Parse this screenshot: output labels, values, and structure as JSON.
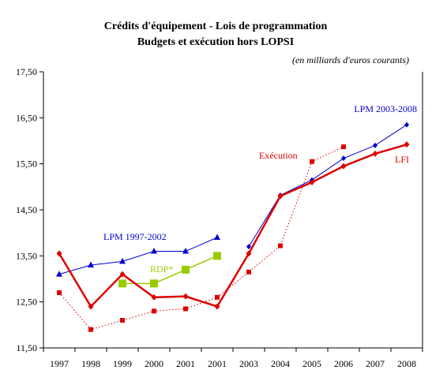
{
  "chart_data": {
    "type": "line",
    "title": "Crédits d'équipement - Lois de programmation",
    "subtitle": "Budgets et exécution hors LOPSI",
    "unit_note": "(en milliards d'euros courants)",
    "categories": [
      "1997",
      "1998",
      "1999",
      "2000",
      "2001",
      "2001",
      "2003",
      "2004",
      "2005",
      "2006",
      "2007",
      "2008"
    ],
    "yticks": [
      "17,50",
      "16,50",
      "15,50",
      "14,50",
      "13,50",
      "12,50",
      "11,50"
    ],
    "ylim": [
      11.5,
      17.5
    ],
    "grid": false,
    "series": [
      {
        "name": "LPM 1997-2002",
        "color": "#0000cc",
        "marker": "triangle",
        "line": "solid-thin",
        "segments": [
          [
            [
              0,
              13.1
            ],
            [
              1,
              13.3
            ],
            [
              2,
              13.38
            ],
            [
              3,
              13.6
            ],
            [
              4,
              13.6
            ],
            [
              5,
              13.9
            ]
          ]
        ]
      },
      {
        "name": "LPM 2003-2008",
        "color": "#0000cc",
        "marker": "diamond-small",
        "line": "solid-thin",
        "segments": [
          [
            [
              6,
              13.7
            ],
            [
              7,
              14.82
            ],
            [
              8,
              15.15
            ],
            [
              9,
              15.62
            ],
            [
              10,
              15.9
            ],
            [
              11,
              16.35
            ]
          ]
        ]
      },
      {
        "name": "LFI",
        "color": "#dd0000",
        "marker": "diamond",
        "line": "solid-thick",
        "segments": [
          [
            [
              0,
              13.55
            ],
            [
              1,
              12.4
            ],
            [
              2,
              13.1
            ],
            [
              3,
              12.6
            ],
            [
              4,
              12.62
            ],
            [
              5,
              12.4
            ],
            [
              6,
              13.55
            ],
            [
              7,
              14.8
            ],
            [
              8,
              15.1
            ],
            [
              9,
              15.45
            ],
            [
              10,
              15.72
            ],
            [
              11,
              15.92
            ]
          ]
        ]
      },
      {
        "name": "Exécution",
        "color": "#dd0000",
        "marker": "square",
        "line": "dotted",
        "segments": [
          [
            [
              0,
              12.7
            ],
            [
              1,
              11.9
            ],
            [
              2,
              12.1
            ],
            [
              3,
              12.3
            ],
            [
              4,
              12.35
            ],
            [
              5,
              12.6
            ],
            [
              6,
              13.15
            ],
            [
              7,
              13.72
            ],
            [
              8,
              15.55
            ],
            [
              9,
              15.87
            ]
          ]
        ]
      },
      {
        "name": "RDP*",
        "color": "#99cc00",
        "marker": "square-large",
        "line": "solid-thin",
        "segments": [
          [
            [
              2,
              12.9
            ],
            [
              3,
              12.9
            ],
            [
              4,
              13.2
            ],
            [
              5,
              13.5
            ]
          ]
        ]
      }
    ],
    "annotations": [
      {
        "text": "LPM 2003-2008",
        "color": "#0000cc"
      },
      {
        "text": "Exécution",
        "color": "#dd0000"
      },
      {
        "text": "LFI",
        "color": "#dd0000"
      },
      {
        "text": "LPM 1997-2002",
        "color": "#0000cc"
      },
      {
        "text": "RDP*",
        "color": "#99cc00"
      }
    ]
  }
}
